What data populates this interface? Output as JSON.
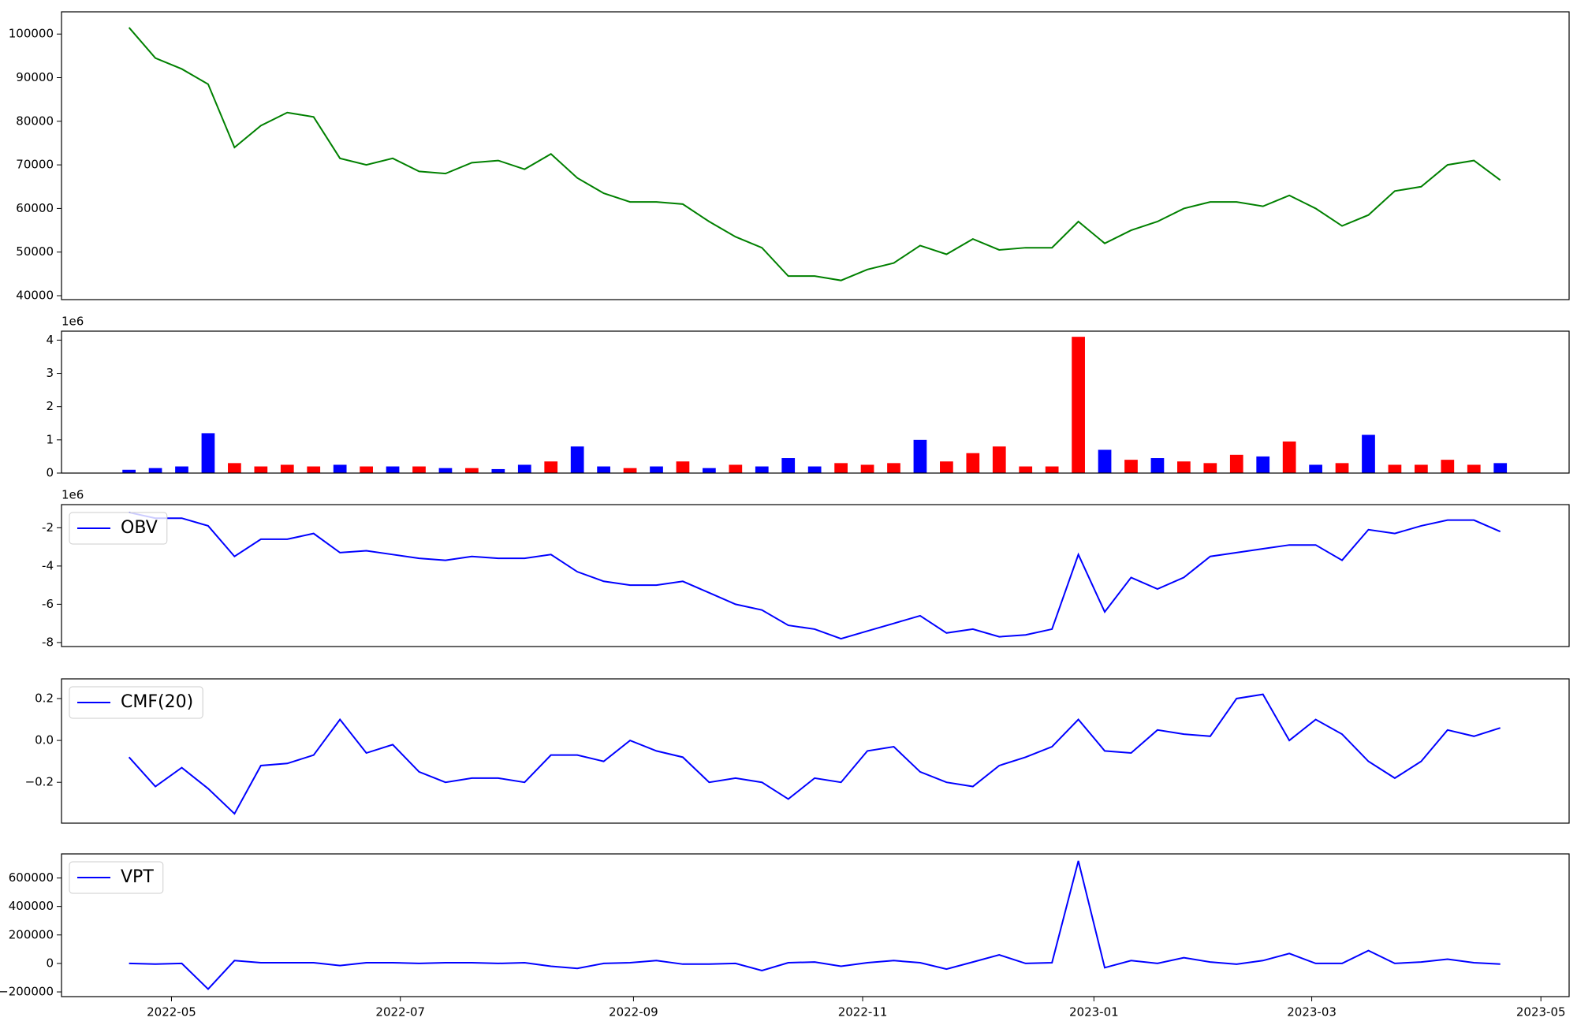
{
  "chart_data": [
    {
      "type": "line",
      "color": "#008000",
      "categories": [
        null,
        null,
        null,
        null,
        null,
        null,
        null,
        null,
        null,
        null,
        null,
        null,
        null,
        null,
        null,
        null,
        null,
        null,
        null,
        null,
        null,
        null,
        null,
        null,
        null,
        null,
        null,
        null,
        null,
        null,
        null,
        null,
        null,
        null,
        null,
        null,
        null,
        null,
        null,
        null,
        null,
        null,
        null,
        null,
        null,
        null,
        null,
        null,
        null,
        null,
        null,
        null,
        null
      ],
      "values": [
        101500,
        94500,
        92000,
        88500,
        74000,
        79000,
        82000,
        81000,
        71500,
        70000,
        71500,
        68500,
        68000,
        70500,
        71000,
        69000,
        72500,
        67000,
        63500,
        61500,
        61500,
        61000,
        57000,
        53500,
        51000,
        44500,
        44500,
        43500,
        46000,
        47500,
        51500,
        49500,
        53000,
        50500,
        51000,
        51000,
        57000,
        52000,
        55000,
        57000,
        60000,
        61500,
        61500,
        60500,
        63000,
        60000,
        56000,
        58500,
        64000,
        65000,
        70000,
        71000,
        66500
      ],
      "xlim": [
        -2.56,
        54.61
      ],
      "ylim": [
        39100,
        105100
      ],
      "yticks": [
        40000,
        50000,
        60000,
        70000,
        80000,
        90000,
        100000
      ]
    },
    {
      "type": "bar",
      "categories": [
        null,
        null,
        null,
        null,
        null,
        null,
        null,
        null,
        null,
        null,
        null,
        null,
        null,
        null,
        null,
        null,
        null,
        null,
        null,
        null,
        null,
        null,
        null,
        null,
        null,
        null,
        null,
        null,
        null,
        null,
        null,
        null,
        null,
        null,
        null,
        null,
        null,
        null,
        null,
        null,
        null,
        null,
        null,
        null,
        null,
        null,
        null,
        null,
        null,
        null,
        null,
        null,
        null
      ],
      "values": [
        0.1,
        0.15,
        0.2,
        1.2,
        0.3,
        0.2,
        0.25,
        0.2,
        0.25,
        0.2,
        0.2,
        0.2,
        0.15,
        0.15,
        0.12,
        0.25,
        0.35,
        0.8,
        0.2,
        0.15,
        0.2,
        0.35,
        0.15,
        0.25,
        0.2,
        0.45,
        0.2,
        0.3,
        0.25,
        0.3,
        1.0,
        0.35,
        0.6,
        0.8,
        0.2,
        0.2,
        4.1,
        0.7,
        0.4,
        0.45,
        0.35,
        0.3,
        0.55,
        0.5,
        0.95,
        0.25,
        0.3,
        1.15,
        0.25,
        0.25,
        0.4,
        0.25,
        0.3
      ],
      "colors": [
        "#0000ff",
        "#0000ff",
        "#0000ff",
        "#0000ff",
        "#ff0000",
        "#ff0000",
        "#ff0000",
        "#ff0000",
        "#0000ff",
        "#ff0000",
        "#0000ff",
        "#ff0000",
        "#0000ff",
        "#ff0000",
        "#0000ff",
        "#0000ff",
        "#ff0000",
        "#0000ff",
        "#0000ff",
        "#ff0000",
        "#0000ff",
        "#ff0000",
        "#0000ff",
        "#ff0000",
        "#0000ff",
        "#0000ff",
        "#0000ff",
        "#ff0000",
        "#ff0000",
        "#ff0000",
        "#0000ff",
        "#ff0000",
        "#ff0000",
        "#ff0000",
        "#ff0000",
        "#ff0000",
        "#ff0000",
        "#0000ff",
        "#ff0000",
        "#0000ff",
        "#ff0000",
        "#ff0000",
        "#ff0000",
        "#0000ff",
        "#ff0000",
        "#0000ff",
        "#ff0000",
        "#0000ff",
        "#ff0000",
        "#ff0000",
        "#ff0000",
        "#ff0000",
        "#0000ff"
      ],
      "xlim": [
        -2.56,
        54.61
      ],
      "ylim": [
        0,
        4.27
      ],
      "yticks": [
        0,
        1,
        2,
        3,
        4
      ],
      "y_offset_label": "1e6"
    },
    {
      "type": "line",
      "categories": [
        null,
        null,
        null,
        null,
        null,
        null,
        null,
        null,
        null,
        null,
        null,
        null,
        null,
        null,
        null,
        null,
        null,
        null,
        null,
        null,
        null,
        null,
        null,
        null,
        null,
        null,
        null,
        null,
        null,
        null,
        null,
        null,
        null,
        null,
        null,
        null,
        null,
        null,
        null,
        null,
        null,
        null,
        null,
        null,
        null,
        null,
        null,
        null,
        null,
        null,
        null,
        null,
        null
      ],
      "series": [
        {
          "name": "OBV",
          "color": "#0000ff",
          "values": [
            -1.2,
            -1.5,
            -1.5,
            -1.9,
            -3.5,
            -2.6,
            -2.6,
            -2.3,
            -3.3,
            -3.2,
            -3.4,
            -3.6,
            -3.7,
            -3.5,
            -3.6,
            -3.6,
            -3.4,
            -4.3,
            -4.8,
            -5.0,
            -5.0,
            -4.8,
            -5.4,
            -6.0,
            -6.3,
            -7.1,
            -7.3,
            -7.8,
            -7.4,
            -7.0,
            -6.6,
            -7.5,
            -7.3,
            -7.7,
            -7.6,
            -7.3,
            -3.4,
            -6.4,
            -4.6,
            -5.2,
            -4.6,
            -3.5,
            -3.3,
            -3.1,
            -2.9,
            -2.9,
            -3.7,
            -2.1,
            -2.3,
            -1.9,
            -1.6,
            -1.6,
            -2.2
          ]
        }
      ],
      "legend": "upper left",
      "xlim": [
        -2.56,
        54.61
      ],
      "ylim": [
        -8.21,
        -0.79
      ],
      "yticks": [
        -8,
        -6,
        -4,
        -2
      ],
      "y_offset_label": "1e6"
    },
    {
      "type": "line",
      "categories": [
        null,
        null,
        null,
        null,
        null,
        null,
        null,
        null,
        null,
        null,
        null,
        null,
        null,
        null,
        null,
        null,
        null,
        null,
        null,
        null,
        null,
        null,
        null,
        null,
        null,
        null,
        null,
        null,
        null,
        null,
        null,
        null,
        null,
        null,
        null,
        null,
        null,
        null,
        null,
        null,
        null,
        null,
        null,
        null,
        null,
        null,
        null,
        null,
        null,
        null,
        null,
        null,
        null
      ],
      "series": [
        {
          "name": "CMF(20)",
          "color": "#0000ff",
          "values": [
            -0.08,
            -0.22,
            -0.13,
            -0.23,
            -0.35,
            -0.12,
            -0.11,
            -0.07,
            0.1,
            -0.06,
            -0.02,
            -0.15,
            -0.2,
            -0.18,
            -0.18,
            -0.2,
            -0.07,
            -0.07,
            -0.1,
            0.0,
            -0.05,
            -0.08,
            -0.2,
            -0.18,
            -0.2,
            -0.28,
            -0.18,
            -0.2,
            -0.05,
            -0.03,
            -0.15,
            -0.2,
            -0.22,
            -0.12,
            -0.08,
            -0.03,
            0.1,
            -0.05,
            -0.06,
            0.05,
            0.03,
            0.02,
            0.2,
            0.22,
            0.0,
            0.1,
            0.03,
            -0.1,
            -0.18,
            -0.1,
            0.05,
            0.02,
            0.06
          ]
        }
      ],
      "legend": "upper left",
      "xlim": [
        -2.56,
        54.61
      ],
      "ylim": [
        -0.395,
        0.294
      ],
      "yticks": [
        {
          "value": -0.2,
          "label": "−0.2"
        },
        {
          "value": 0,
          "label": "0.0"
        },
        0.2
      ]
    },
    {
      "type": "line",
      "categories": [
        null,
        null,
        null,
        null,
        null,
        null,
        null,
        null,
        null,
        null,
        null,
        null,
        null,
        null,
        null,
        null,
        null,
        null,
        null,
        null,
        null,
        null,
        null,
        null,
        null,
        null,
        null,
        null,
        null,
        null,
        null,
        null,
        null,
        null,
        null,
        null,
        null,
        null,
        null,
        null,
        null,
        null,
        null,
        null,
        null,
        null,
        null,
        null,
        null,
        null,
        null,
        null,
        null
      ],
      "series": [
        {
          "name": "VPT",
          "color": "#0000ff",
          "values": [
            0,
            -5000,
            0,
            -180000,
            20000,
            5000,
            5000,
            5000,
            -15000,
            5000,
            5000,
            0,
            5000,
            5000,
            0,
            5000,
            -20000,
            -35000,
            0,
            5000,
            20000,
            -5000,
            -5000,
            0,
            -50000,
            5000,
            10000,
            -20000,
            5000,
            20000,
            5000,
            -40000,
            10000,
            60000,
            0,
            5000,
            720000,
            -30000,
            20000,
            0,
            40000,
            10000,
            -5000,
            20000,
            70000,
            0,
            0,
            90000,
            0,
            10000,
            30000,
            5000,
            -5000
          ]
        }
      ],
      "legend": "upper left",
      "xlim": [
        -2.56,
        54.61
      ],
      "ylim": [
        -233000,
        769000
      ],
      "yticks": [
        {
          "value": -200000,
          "label": "−200000"
        },
        0,
        200000,
        400000,
        600000
      ],
      "xticks": [
        {
          "value": 1.61,
          "label": "2022-05"
        },
        {
          "value": 10.29,
          "label": "2022-07"
        },
        {
          "value": 19.13,
          "label": "2022-09"
        },
        {
          "value": 27.82,
          "label": "2022-11"
        },
        {
          "value": 36.59,
          "label": "2023-01"
        },
        {
          "value": 44.85,
          "label": "2023-03"
        },
        {
          "value": 53.54,
          "label": "2023-05"
        }
      ]
    }
  ]
}
